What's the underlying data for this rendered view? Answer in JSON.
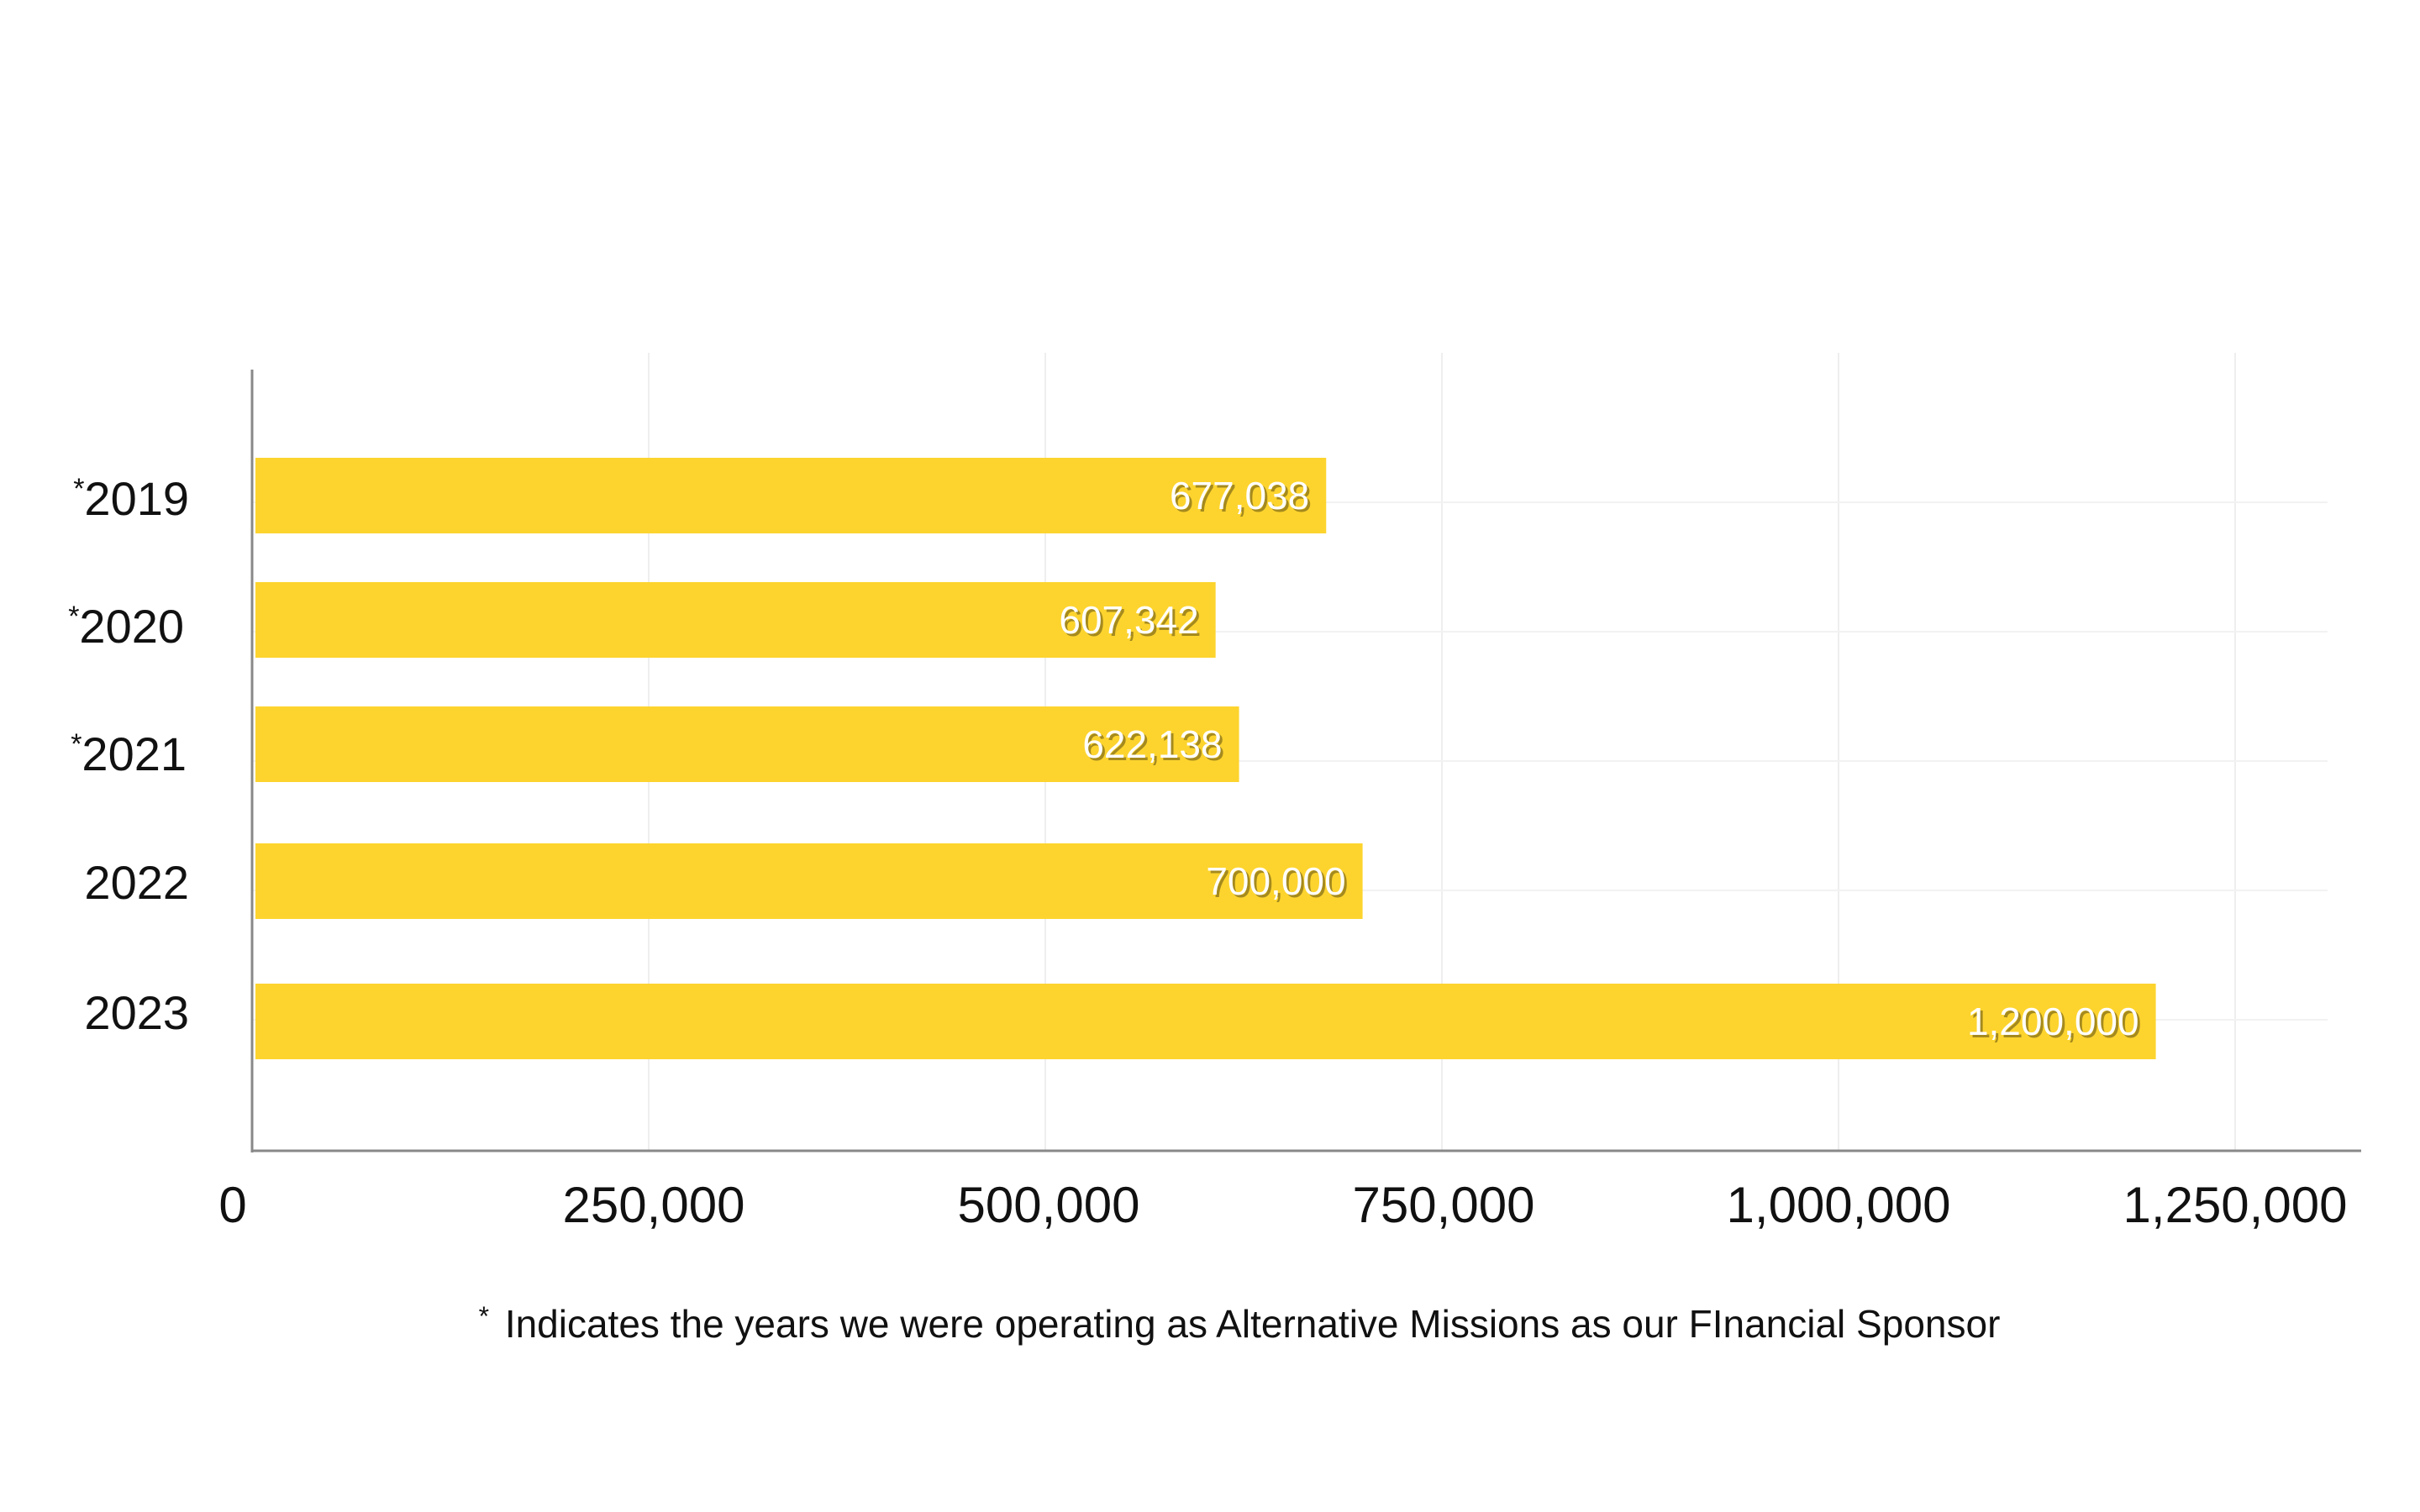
{
  "chart_data": {
    "type": "bar",
    "orientation": "horizontal",
    "categories": [
      {
        "asterisk": "*",
        "year": "2019"
      },
      {
        "asterisk": "*",
        "year": "2020"
      },
      {
        "asterisk": "*",
        "year": "2021"
      },
      {
        "asterisk": "",
        "year": "2022"
      },
      {
        "asterisk": "",
        "year": "2023"
      }
    ],
    "values": [
      677038,
      607342,
      622138,
      700000,
      1200000
    ],
    "data_labels": [
      "677,038",
      "607,342",
      "622,138",
      "700,000",
      "1,200,000"
    ],
    "xlim": [
      0,
      1250000
    ],
    "xticks": [
      0,
      250000,
      500000,
      750000,
      1000000,
      1250000
    ],
    "xtick_labels": [
      "0",
      "250,000",
      "500,000",
      "750,000",
      "1,000,000",
      "1,250,000"
    ],
    "grid": true,
    "bar_color": "#FDD42E",
    "grid_color": "#eeeeee",
    "axis_color": "#888888"
  },
  "footnote": {
    "asterisk": "*",
    "text": "Indicates the years we were operating as Alternative Missions as our FInancial Sponsor"
  }
}
